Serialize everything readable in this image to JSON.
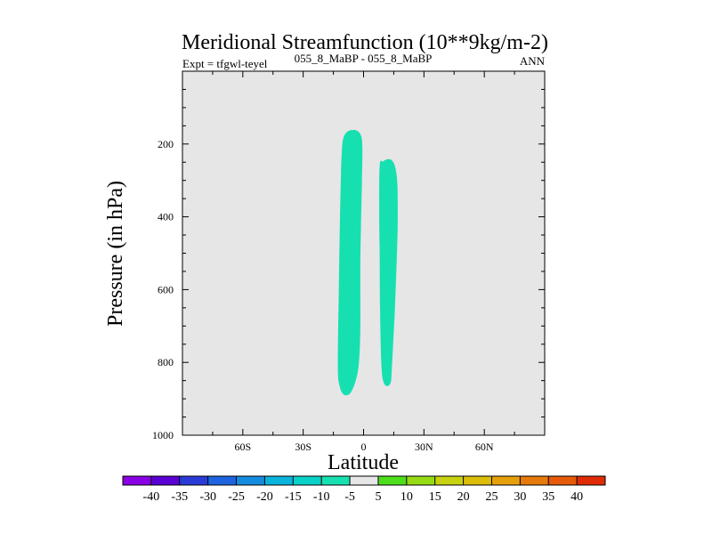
{
  "chart_data": {
    "type": "contour",
    "title": "Meridional Streamfunction (10**9kg/m-2)",
    "subtitle_left": "Expt = tfgwl-teyel",
    "subtitle_center": "055_8_MaBP - 055_8_MaBP",
    "subtitle_right": "ANN",
    "xlabel": "Latitude",
    "ylabel": "Pressure (in hPa)",
    "xlim": [
      -90,
      90
    ],
    "ylim": [
      1000,
      0
    ],
    "x_ticks": [
      {
        "value": -60,
        "label": "60S"
      },
      {
        "value": -30,
        "label": "30S"
      },
      {
        "value": 0,
        "label": "0"
      },
      {
        "value": 30,
        "label": "30N"
      },
      {
        "value": 60,
        "label": "60N"
      }
    ],
    "y_ticks": [
      {
        "value": 200,
        "label": "200"
      },
      {
        "value": 400,
        "label": "400"
      },
      {
        "value": 600,
        "label": "600"
      },
      {
        "value": 800,
        "label": "800"
      },
      {
        "value": 1000,
        "label": "1000"
      }
    ],
    "background_color": "#e6e6e6",
    "filled_regions": [
      {
        "name": "cell-south",
        "interval": "-10 to -5",
        "color": "#16e0b0",
        "outline": [
          [
            -11.2,
            275
          ],
          [
            -10.9,
            230
          ],
          [
            -10.3,
            190
          ],
          [
            -8.8,
            170
          ],
          [
            -6.3,
            162
          ],
          [
            -3.4,
            163
          ],
          [
            -1.4,
            175
          ],
          [
            -0.6,
            205
          ],
          [
            -0.8,
            300
          ],
          [
            -1.6,
            520
          ],
          [
            -1.6,
            700
          ],
          [
            -2.3,
            800
          ],
          [
            -3.9,
            850
          ],
          [
            -6.7,
            885
          ],
          [
            -9.9,
            888
          ],
          [
            -11.9,
            865
          ],
          [
            -12.8,
            810
          ],
          [
            -12.3,
            600
          ],
          [
            -11.7,
            400
          ]
        ]
      },
      {
        "name": "cell-north",
        "interval": "-10 to -5",
        "color": "#16e0b0",
        "outline": [
          [
            8.0,
            260
          ],
          [
            9.7,
            248
          ],
          [
            11.8,
            242
          ],
          [
            14.1,
            245
          ],
          [
            15.8,
            265
          ],
          [
            16.8,
            310
          ],
          [
            17.0,
            400
          ],
          [
            16.6,
            500
          ],
          [
            15.6,
            650
          ],
          [
            14.6,
            760
          ],
          [
            14.0,
            820
          ],
          [
            13.5,
            855
          ],
          [
            11.5,
            865
          ],
          [
            9.7,
            850
          ],
          [
            8.8,
            800
          ],
          [
            8.2,
            650
          ],
          [
            8.0,
            500
          ],
          [
            7.8,
            400
          ]
        ]
      }
    ],
    "colorbar": {
      "labels": [
        "-40",
        "-35",
        "-30",
        "-25",
        "-20",
        "-15",
        "-10",
        "-5",
        "5",
        "10",
        "15",
        "20",
        "25",
        "30",
        "35",
        "40"
      ],
      "colors": [
        "#8a00e6",
        "#5a00d6",
        "#2a3cd8",
        "#1e64e0",
        "#148ce0",
        "#0ab4dc",
        "#08d2c8",
        "#16e0b0",
        "#e6e6e6",
        "#4ede1c",
        "#96dc14",
        "#c8d20e",
        "#dcbe0a",
        "#e6a00a",
        "#e67a0a",
        "#e65a0a",
        "#e02c04"
      ]
    }
  }
}
